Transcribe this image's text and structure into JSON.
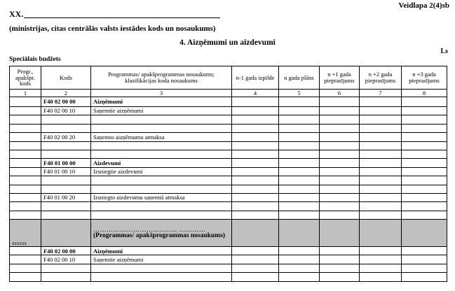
{
  "form_id": "Veidlapa 2(4)sb",
  "org_code": "XX.",
  "org_caption": "(ministrijas, citas centrālās valsts iestādes kods un nosaukums)",
  "title": "4. Aizņēmumi un aizdevumi",
  "currency": "Ls",
  "budget_label": "Speciālais budžets",
  "table": {
    "headers": [
      "Progr., apakšpr. kods",
      "Kods",
      "Programmas/ apakšprogrammas nosaukums; klasifikācijas koda nosaukums",
      "n-1 gada izpilde",
      "n gada plāns",
      "n +1 gada pieprasījums",
      "n +2 gada pieprasījums",
      "n +3 gada pieprasījums"
    ],
    "column_numbers": [
      "1",
      "2",
      "3",
      "4",
      "5",
      "6",
      "7",
      "8"
    ],
    "rows": [
      {
        "code": "F40 02 00 00",
        "name": "Aizņēmumi",
        "bold": true
      },
      {
        "code": "F40 02 00 10",
        "name": "Saņemtie aizņēmumi"
      },
      {
        "code": "",
        "name": ""
      },
      {
        "code": "",
        "name": ""
      },
      {
        "code": "F40 02 00 20",
        "name": "Saņemto aizņēmumu atmaksa"
      },
      {
        "code": "",
        "name": ""
      },
      {
        "code": "",
        "name": ""
      },
      {
        "code": "F40 01 00 00",
        "name": "Aizdevumi",
        "bold": true
      },
      {
        "code": "F40 01 00 10",
        "name": "Izsniegtie aizdevumi"
      },
      {
        "code": "",
        "name": ""
      },
      {
        "code": "",
        "name": ""
      },
      {
        "code": "F40 01 00 20",
        "name": "Izsniegto aizdevumu saņemtā atmaksa"
      },
      {
        "code": "",
        "name": ""
      },
      {
        "code": "",
        "name": ""
      }
    ],
    "program_row": {
      "prog_code": "xxxxxx",
      "dots": "……………………………….. …………",
      "name": "(Programmas/ apakšprogrammas nosaukums)",
      "color": "#c0c0c0"
    },
    "rows2": [
      {
        "code": "F40 02 00 00",
        "name": "Aizņēmumi",
        "bold": true
      },
      {
        "code": "F40 02 00 10",
        "name": "Saņemtie aizņēmumi"
      },
      {
        "code": "",
        "name": ""
      },
      {
        "code": "",
        "name": ""
      }
    ]
  }
}
